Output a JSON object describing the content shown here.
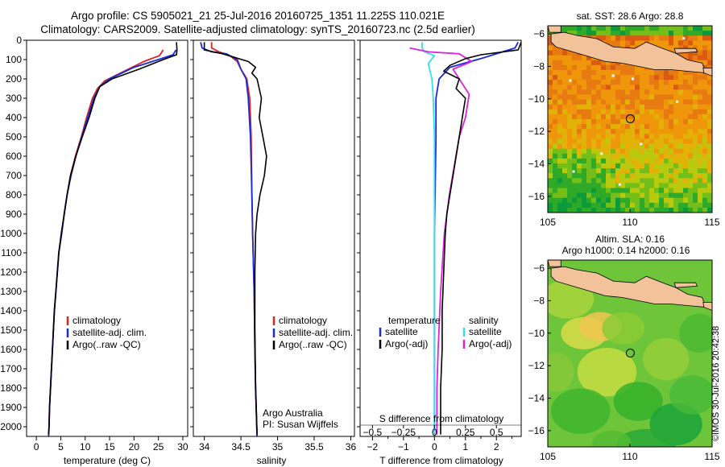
{
  "header": {
    "line1": "Argo profile: CS 5905021_21 25-Jul-2016 20160725_1351 11.225S 110.021E",
    "line2": "Climatology: CARS2009. Satellite-adjusted climatology: synTS_20160723.nc (2.5d earlier)"
  },
  "watermark": "©IMOS 30-Jul-2016 20:42:38",
  "colors": {
    "climatology": "#dd2222",
    "satellite": "#1a2bd6",
    "argo": "#000000",
    "cyan": "#33e0f0",
    "magenta": "#dd22dd",
    "land": "#f2c29a"
  },
  "chart_data": [
    {
      "type": "line",
      "panel": "temperature",
      "xlabel": "temperature (deg C)",
      "ylabel": "",
      "xlim": [
        -2,
        31
      ],
      "ylim": [
        2050,
        0
      ],
      "xticks": [
        0,
        5,
        10,
        15,
        20,
        25,
        30
      ],
      "yticks": [
        0,
        100,
        200,
        300,
        400,
        500,
        600,
        700,
        800,
        900,
        1000,
        1100,
        1200,
        1300,
        1400,
        1500,
        1600,
        1700,
        1800,
        1900,
        2000
      ],
      "legend": [
        "climatology",
        "satellite-adj. clim.",
        "Argo(..raw -QC)"
      ],
      "legend_placement": "lower-left",
      "series": [
        {
          "name": "climatology",
          "color": "#dd2222",
          "points": [
            [
              26,
              50
            ],
            [
              25.2,
              80
            ],
            [
              22,
              110
            ],
            [
              18,
              160
            ],
            [
              14,
              210
            ],
            [
              12.5,
              250
            ],
            [
              11.5,
              300
            ],
            [
              10.3,
              400
            ],
            [
              9.2,
              500
            ],
            [
              8,
              600
            ],
            [
              7,
              700
            ],
            [
              6.3,
              800
            ],
            [
              5.7,
              900
            ],
            [
              5.2,
              1000
            ],
            [
              4.6,
              1100
            ],
            [
              4.3,
              1200
            ],
            [
              4,
              1300
            ],
            [
              3.7,
              1400
            ],
            [
              3.5,
              1500
            ],
            [
              3.3,
              1600
            ],
            [
              3.1,
              1700
            ],
            [
              2.9,
              1800
            ],
            [
              2.7,
              1900
            ],
            [
              2.6,
              2000
            ],
            [
              2.5,
              2050
            ]
          ]
        },
        {
          "name": "satellite-adj. clim.",
          "color": "#1a2bd6",
          "points": [
            [
              28.6,
              50
            ],
            [
              28,
              75
            ],
            [
              25,
              100
            ],
            [
              20,
              140
            ],
            [
              15,
              200
            ],
            [
              13,
              240
            ],
            [
              11.8,
              300
            ],
            [
              10.5,
              400
            ],
            [
              9.3,
              500
            ],
            [
              8.1,
              600
            ],
            [
              7.1,
              700
            ],
            [
              6.3,
              800
            ],
            [
              5.7,
              900
            ],
            [
              5.2,
              1000
            ],
            [
              4.6,
              1100
            ],
            [
              4.3,
              1200
            ],
            [
              4,
              1300
            ],
            [
              3.7,
              1400
            ],
            [
              3.5,
              1500
            ],
            [
              3.3,
              1600
            ],
            [
              3.1,
              1700
            ],
            [
              2.9,
              1800
            ],
            [
              2.7,
              1900
            ],
            [
              2.6,
              2000
            ],
            [
              2.5,
              2050
            ]
          ]
        },
        {
          "name": "Argo(..raw -QC)",
          "color": "#000000",
          "points": [
            [
              28.7,
              10
            ],
            [
              28.8,
              50
            ],
            [
              28.7,
              75
            ],
            [
              26,
              100
            ],
            [
              21,
              150
            ],
            [
              15.5,
              200
            ],
            [
              13,
              240
            ],
            [
              12,
              300
            ],
            [
              10.8,
              400
            ],
            [
              9.4,
              500
            ],
            [
              8.1,
              600
            ],
            [
              7,
              700
            ],
            [
              6.3,
              800
            ],
            [
              5.7,
              900
            ],
            [
              5.1,
              1000
            ],
            [
              4.6,
              1100
            ],
            [
              4.3,
              1200
            ],
            [
              4,
              1300
            ],
            [
              3.7,
              1400
            ],
            [
              3.5,
              1500
            ],
            [
              3.3,
              1600
            ],
            [
              3.1,
              1700
            ],
            [
              2.9,
              1800
            ],
            [
              2.7,
              1900
            ],
            [
              2.6,
              2000
            ],
            [
              2.5,
              2040
            ]
          ]
        }
      ]
    },
    {
      "type": "line",
      "panel": "salinity",
      "xlabel": "salinity",
      "ylabel": "",
      "xlim": [
        33.85,
        36.05
      ],
      "ylim": [
        2050,
        0
      ],
      "xticks": [
        34,
        34.5,
        35,
        35.5,
        36
      ],
      "xticklabels": [
        "34",
        "34.5",
        "35",
        "35.5",
        "36"
      ],
      "legend": [
        "climatology",
        "satellite-adj. clim.",
        "Argo(..raw -QC)"
      ],
      "legend_placement": "lower-right",
      "annotation": [
        "Argo Australia",
        "PI: Susan Wijffels"
      ],
      "series": [
        {
          "name": "climatology",
          "color": "#dd2222",
          "points": [
            [
              34.1,
              10
            ],
            [
              34.1,
              40
            ],
            [
              34.2,
              60
            ],
            [
              34.35,
              80
            ],
            [
              34.45,
              110
            ],
            [
              34.5,
              150
            ],
            [
              34.58,
              200
            ],
            [
              34.62,
              300
            ],
            [
              34.64,
              500
            ],
            [
              34.65,
              800
            ],
            [
              34.66,
              1000
            ],
            [
              34.68,
              1300
            ],
            [
              34.69,
              1600
            ],
            [
              34.7,
              1800
            ],
            [
              34.72,
              2050
            ]
          ]
        },
        {
          "name": "satellite-adj. clim.",
          "color": "#1a2bd6",
          "points": [
            [
              33.95,
              10
            ],
            [
              33.97,
              40
            ],
            [
              34.1,
              60
            ],
            [
              34.3,
              70
            ],
            [
              34.45,
              100
            ],
            [
              34.5,
              150
            ],
            [
              34.57,
              200
            ],
            [
              34.6,
              300
            ],
            [
              34.63,
              500
            ],
            [
              34.65,
              800
            ],
            [
              34.66,
              1000
            ],
            [
              34.68,
              1300
            ],
            [
              34.69,
              1600
            ],
            [
              34.7,
              1800
            ],
            [
              34.72,
              2050
            ]
          ]
        },
        {
          "name": "Argo(..raw -QC)",
          "color": "#000000",
          "points": [
            [
              34.0,
              10
            ],
            [
              34.0,
              50
            ],
            [
              34.25,
              70
            ],
            [
              34.6,
              110
            ],
            [
              34.7,
              140
            ],
            [
              34.65,
              170
            ],
            [
              34.72,
              200
            ],
            [
              34.78,
              300
            ],
            [
              34.75,
              400
            ],
            [
              34.8,
              500
            ],
            [
              34.85,
              600
            ],
            [
              34.82,
              700
            ],
            [
              34.76,
              800
            ],
            [
              34.72,
              900
            ],
            [
              34.7,
              1000
            ],
            [
              34.69,
              1200
            ],
            [
              34.69,
              1500
            ],
            [
              34.7,
              1800
            ],
            [
              34.72,
              2040
            ]
          ]
        }
      ]
    },
    {
      "type": "line",
      "panel": "difference",
      "xlabel": "T difference from climatology",
      "ylabel": "",
      "xlim": [
        -2.4,
        2.8
      ],
      "ylim": [
        2050,
        0
      ],
      "xticks": [
        -2,
        -1,
        0,
        1,
        2
      ],
      "top_axis_label": "S difference from climatology",
      "top_xticks": [
        -0.5,
        -0.25,
        0,
        0.25,
        0.5
      ],
      "top_xticklabels": [
        "−0.5",
        "−0.25",
        "0",
        "0.25",
        "0.5"
      ],
      "legend_groups": [
        {
          "title": "temperature",
          "entries": [
            "satellite",
            "Argo(-adj)"
          ]
        },
        {
          "title": "salinity",
          "entries": [
            "satellite",
            "Argo(-adj)"
          ]
        }
      ],
      "legend_placement": "lower-center",
      "series": [
        {
          "name": "satellite (temperature)",
          "color": "#1a2bd6",
          "points": [
            [
              2.7,
              10
            ],
            [
              2.6,
              40
            ],
            [
              2.2,
              60
            ],
            [
              1.6,
              90
            ],
            [
              0.5,
              140
            ],
            [
              0.15,
              200
            ],
            [
              0.05,
              300
            ],
            [
              0.05,
              500
            ],
            [
              0.02,
              800
            ],
            [
              0,
              1000
            ],
            [
              0,
              1500
            ],
            [
              0,
              2050
            ]
          ]
        },
        {
          "name": "Argo(-adj) (temperature)",
          "color": "#000000",
          "points": [
            [
              2.8,
              10
            ],
            [
              2.7,
              50
            ],
            [
              1.5,
              75
            ],
            [
              1.0,
              95
            ],
            [
              0.5,
              130
            ],
            [
              0.3,
              160
            ],
            [
              0.8,
              200
            ],
            [
              0.7,
              250
            ],
            [
              1.0,
              300
            ],
            [
              0.9,
              400
            ],
            [
              0.8,
              500
            ],
            [
              0.6,
              700
            ],
            [
              0.5,
              800
            ],
            [
              0.4,
              900
            ],
            [
              0.35,
              1000
            ],
            [
              0.3,
              1200
            ],
            [
              0.25,
              1400
            ],
            [
              0.25,
              1600
            ],
            [
              0.2,
              1800
            ],
            [
              0.2,
              2040
            ]
          ]
        },
        {
          "name": "satellite (salinity)",
          "color": "#33e0f0",
          "points": [
            [
              -0.1,
              10
            ],
            [
              -0.1,
              40
            ],
            [
              -0.08,
              60
            ],
            [
              0,
              80
            ],
            [
              -0.05,
              120
            ],
            [
              -0.02,
              200
            ],
            [
              -0.01,
              300
            ],
            [
              0,
              500
            ],
            [
              0,
              800
            ],
            [
              0,
              1000
            ],
            [
              0,
              1500
            ],
            [
              0,
              2050
            ]
          ]
        },
        {
          "name": "Argo(-adj) (salinity)",
          "color": "#dd22dd",
          "points": [
            [
              -0.2,
              40
            ],
            [
              -0.05,
              60
            ],
            [
              0.2,
              70
            ],
            [
              0.3,
              110
            ],
            [
              0.15,
              150
            ],
            [
              0.2,
              200
            ],
            [
              0.28,
              280
            ],
            [
              0.25,
              400
            ],
            [
              0.2,
              500
            ],
            [
              0.12,
              800
            ],
            [
              0.08,
              1000
            ],
            [
              0.05,
              1300
            ],
            [
              0.03,
              1600
            ],
            [
              0.02,
              1800
            ],
            [
              0.02,
              2040
            ]
          ]
        }
      ]
    },
    {
      "type": "heatmap",
      "panel": "sst-map",
      "title": "sat. SST: 28.6 Argo: 28.8",
      "xlim": [
        105,
        115
      ],
      "ylim": [
        -17,
        -5.5
      ],
      "xticks": [
        105,
        110,
        115
      ],
      "yticks": [
        -6,
        -8,
        -10,
        -12,
        -14,
        -16
      ],
      "argo_position": [
        110.021,
        -11.225
      ],
      "palette": [
        "#0d9a3a",
        "#2faa28",
        "#74be1a",
        "#b9c90e",
        "#e3b208",
        "#f0960a",
        "#e77a10",
        "#d95a10",
        "#c43c10"
      ],
      "grid_columns": 34,
      "grid_rows": 38,
      "zone_levels": [
        {
          "lat": -6,
          "level": 6
        },
        {
          "lat": -9,
          "level": 5.6
        },
        {
          "lat": -12,
          "level": 4.8
        },
        {
          "lat": -14,
          "level": 3.3
        },
        {
          "lat": -17,
          "level": 1.2
        }
      ]
    },
    {
      "type": "heatmap",
      "panel": "sla-map",
      "title": "Altim. SLA: 0.16",
      "subtitle": "Argo h1000: 0.14 h2000: 0.16",
      "xlim": [
        105,
        115
      ],
      "ylim": [
        -17,
        -5.5
      ],
      "xticks": [
        105,
        110,
        115
      ],
      "yticks": [
        -6,
        -8,
        -10,
        -12,
        -14,
        -16
      ],
      "argo_position": [
        110.021,
        -11.225
      ],
      "palette": [
        "#0fa03c",
        "#3fb52e",
        "#74c630",
        "#a9d43c",
        "#d0dc46",
        "#ebd24e",
        "#f3c054"
      ]
    }
  ]
}
